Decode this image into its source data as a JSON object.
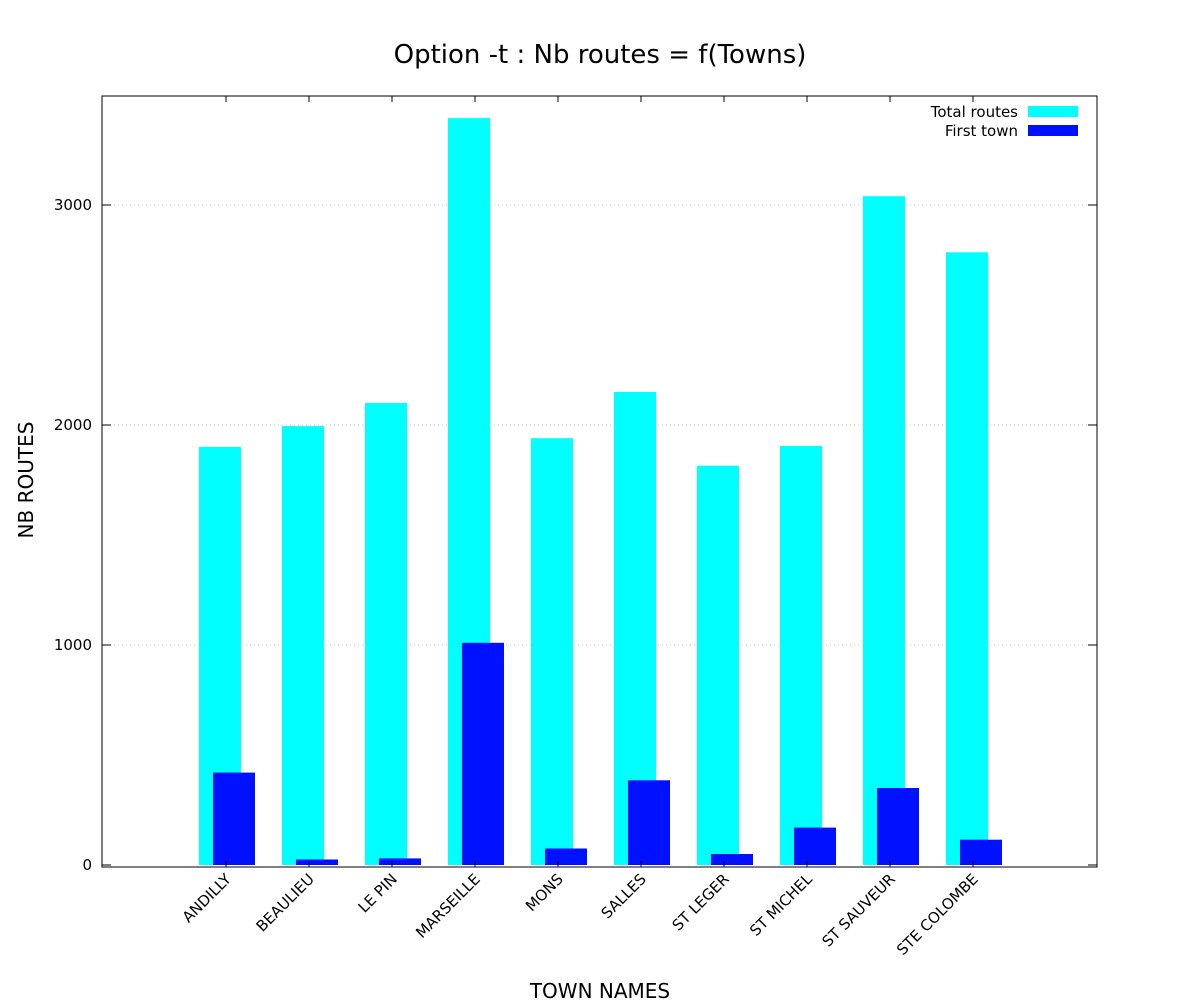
{
  "chart_data": {
    "type": "bar",
    "title": "Option -t : Nb routes = f(Towns)",
    "xlabel": "TOWN NAMES",
    "ylabel": "NB ROUTES",
    "categories": [
      "ANDILLY",
      "BEAULIEU",
      "LE PIN",
      "MARSEILLE",
      "MONS",
      "SALLES",
      "ST LEGER",
      "ST MICHEL",
      "ST SAUVEUR",
      "STE COLOMBE"
    ],
    "series": [
      {
        "name": "Total routes",
        "color": "#00ffff",
        "values": [
          1900,
          1995,
          2100,
          3395,
          1940,
          2150,
          1815,
          1905,
          3040,
          2785
        ]
      },
      {
        "name": "First town",
        "color": "#0011ff",
        "values": [
          420,
          25,
          30,
          1010,
          75,
          385,
          50,
          170,
          350,
          115
        ]
      }
    ],
    "ylim": [
      0,
      3500
    ],
    "yticks": [
      0,
      1000,
      2000,
      3000
    ],
    "grid": "horizontal-dotted",
    "legend": "top-right"
  }
}
